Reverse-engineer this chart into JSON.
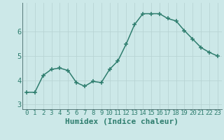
{
  "x": [
    0,
    1,
    2,
    3,
    4,
    5,
    6,
    7,
    8,
    9,
    10,
    11,
    12,
    13,
    14,
    15,
    16,
    17,
    18,
    19,
    20,
    21,
    22,
    23
  ],
  "y": [
    3.5,
    3.5,
    4.2,
    4.45,
    4.5,
    4.4,
    3.9,
    3.75,
    3.95,
    3.9,
    4.45,
    4.8,
    5.5,
    6.3,
    6.75,
    6.75,
    6.75,
    6.55,
    6.45,
    6.05,
    5.7,
    5.35,
    5.15,
    5.0
  ],
  "xlabel": "Humidex (Indice chaleur)",
  "ylim": [
    2.8,
    7.2
  ],
  "xlim": [
    -0.5,
    23.5
  ],
  "yticks": [
    3,
    4,
    5,
    6
  ],
  "xticks": [
    0,
    1,
    2,
    3,
    4,
    5,
    6,
    7,
    8,
    9,
    10,
    11,
    12,
    13,
    14,
    15,
    16,
    17,
    18,
    19,
    20,
    21,
    22,
    23
  ],
  "line_color": "#2e7d6e",
  "marker": "+",
  "bg_color": "#cce8e8",
  "grid_color": "#b8d4d4",
  "xlabel_fontsize": 8,
  "tick_fontsize": 6.5,
  "linewidth": 1.1,
  "markersize": 4.5,
  "markeredgewidth": 1.1
}
